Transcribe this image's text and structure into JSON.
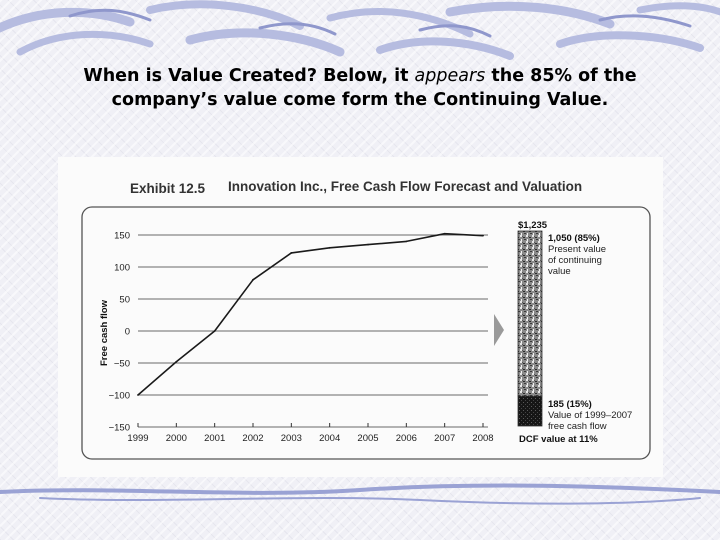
{
  "headline": {
    "line1_pre": "When is Value Created?  Below, it ",
    "line1_em": "appears",
    "line1_post": " the 85% of the",
    "line2": "company’s value come form the Continuing Value."
  },
  "chart_data": {
    "type": "line",
    "title_exhibit": "Exhibit 12.5",
    "title": "Innovation Inc., Free Cash Flow Forecast and Valuation",
    "xlabel": "",
    "ylabel": "Free cash flow",
    "x": [
      "1999",
      "2000",
      "2001",
      "2002",
      "2003",
      "2004",
      "2005",
      "2006",
      "2007",
      "2008"
    ],
    "series": [
      {
        "values": [
          -100,
          -48,
          0,
          80,
          122,
          130,
          135,
          140,
          152,
          149
        ]
      }
    ],
    "ylim": [
      -150,
      150
    ],
    "yticks": [
      "150",
      "100",
      "50",
      "0",
      "−50",
      "−100",
      "−150"
    ],
    "grid": true,
    "valuation": {
      "total": "$1,235",
      "continuing_value": "1,050 (85%)",
      "continuing_label": [
        "Present value",
        "of continuing",
        "value"
      ],
      "fcf_value": "185 (15%)",
      "fcf_label": [
        "Value of 1999–2007",
        "free cash flow"
      ],
      "footer": "DCF value at 11%"
    }
  }
}
